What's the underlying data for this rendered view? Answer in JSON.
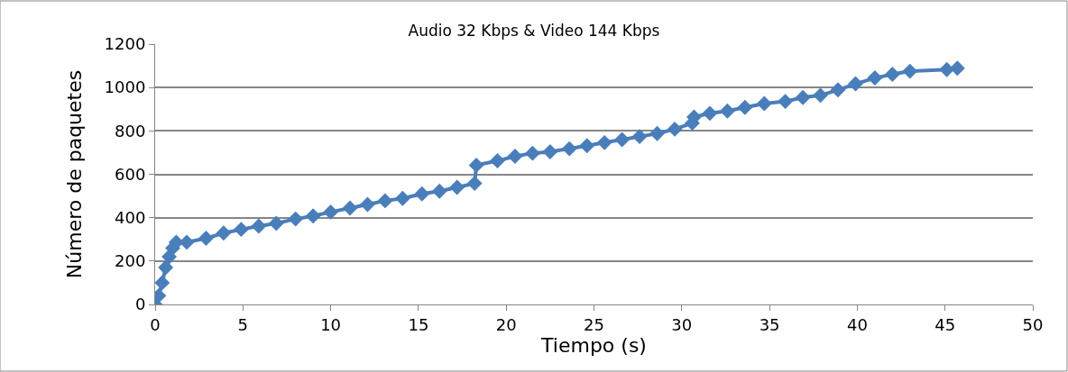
{
  "chart_data": {
    "type": "line",
    "title": "Audio 32 Kbps & Video 144 Kbps",
    "xlabel": "Tiempo (s)",
    "ylabel": "Número de paquetes",
    "xlim": [
      0,
      50
    ],
    "xticks": [
      0,
      5,
      10,
      15,
      20,
      25,
      30,
      35,
      40,
      45,
      50
    ],
    "ylim": [
      0,
      1200
    ],
    "yticks": [
      0,
      200,
      400,
      600,
      800,
      1000,
      1200
    ],
    "grid": "y",
    "marker": "diamond",
    "line_style": "solid",
    "series": [
      {
        "color": "#4a7ebb",
        "x": [
          0,
          0.2,
          0.4,
          0.6,
          0.8,
          1.0,
          1.2,
          1.8,
          2.9,
          3.9,
          4.9,
          5.9,
          6.9,
          8.0,
          9.0,
          10.0,
          11.1,
          12.1,
          13.1,
          14.1,
          15.2,
          16.2,
          17.2,
          18.2,
          18.3,
          19.5,
          20.5,
          21.5,
          22.5,
          23.6,
          24.6,
          25.6,
          26.6,
          27.6,
          28.6,
          29.6,
          30.6,
          30.7,
          31.6,
          32.6,
          33.6,
          34.7,
          35.9,
          36.9,
          37.9,
          38.9,
          39.9,
          41.0,
          42.0,
          43.0,
          45.1,
          45.7
        ],
        "values": [
          0,
          40,
          100,
          170,
          220,
          260,
          287,
          287,
          305,
          329,
          346,
          361,
          374,
          394,
          408,
          426,
          444,
          461,
          478,
          489,
          510,
          522,
          540,
          558,
          642,
          662,
          683,
          697,
          704,
          718,
          732,
          746,
          760,
          774,
          788,
          808,
          836,
          864,
          881,
          892,
          908,
          926,
          936,
          954,
          964,
          989,
          1017,
          1044,
          1061,
          1075,
          1083,
          1089
        ]
      }
    ]
  }
}
